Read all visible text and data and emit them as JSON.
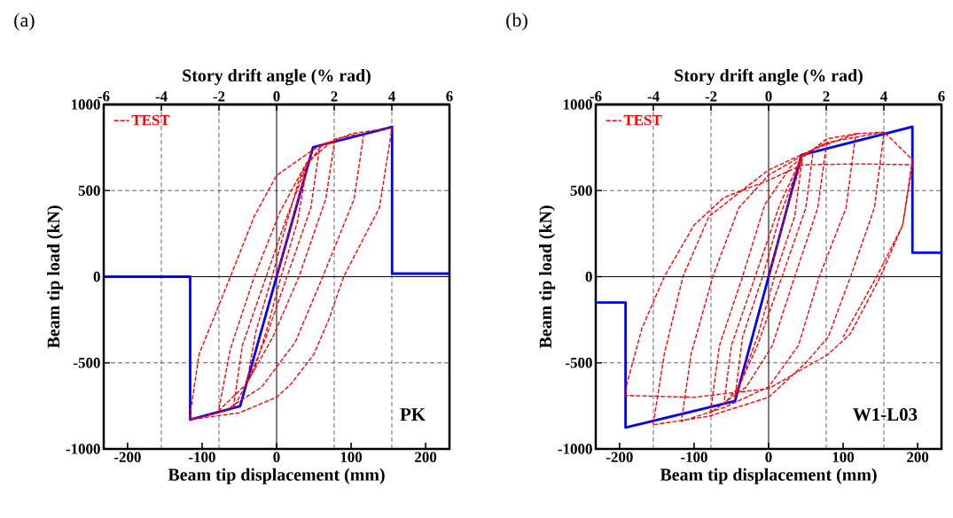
{
  "chart_data": [
    {
      "type": "line",
      "xlabel": "Beam tip displacement (mm)",
      "x2label": "Story drift angle (% rad)",
      "ylabel": "Beam tip load (kN)",
      "xlim": [
        -232,
        232
      ],
      "xticks": [
        -200,
        -100,
        0,
        100,
        200
      ],
      "x2lim": [
        -6,
        6
      ],
      "x2ticks": [
        -6,
        -4,
        -2,
        0,
        2,
        4,
        6
      ],
      "ylim": [
        -1000,
        1000
      ],
      "yticks": [
        -1000,
        -500,
        0,
        500,
        1000
      ],
      "grid": true,
      "legend": "top left",
      "annotations": [
        "(a)",
        "PK"
      ],
      "series": [
        {
          "color": "#0000ff",
          "line_style": "solid",
          "x": [
            -232,
            -116,
            -116,
            -49,
            49,
            155,
            155,
            232
          ],
          "values": [
            0,
            0,
            -830,
            -752,
            752,
            870,
            18,
            18
          ]
        },
        {
          "name": "TEST",
          "color": "#ff0000",
          "line_style": "dashed",
          "x": [
            0,
            20,
            40,
            28,
            6,
            -14,
            -30,
            -40,
            -28,
            -6,
            14,
            30,
            50,
            58,
            46,
            14,
            -14,
            -40,
            -58,
            -46,
            -14,
            14,
            40,
            62,
            78,
            66,
            30,
            -5,
            -40,
            -78,
            -62,
            -30,
            5,
            40,
            78,
            100,
            117,
            104,
            62,
            25,
            -20,
            -70,
            -117,
            -104,
            -62,
            -30,
            0,
            50,
            100,
            155,
            138,
            90,
            70,
            50,
            20,
            0,
            -50,
            -117
          ],
          "values": [
            0,
            320,
            620,
            320,
            0,
            -320,
            -540,
            -620,
            -320,
            0,
            320,
            560,
            740,
            760,
            400,
            0,
            -350,
            -620,
            -760,
            -400,
            0,
            350,
            640,
            770,
            790,
            450,
            0,
            -350,
            -620,
            -780,
            -420,
            0,
            380,
            660,
            800,
            820,
            830,
            450,
            0,
            -380,
            -640,
            -780,
            -830,
            -450,
            0,
            350,
            588,
            740,
            830,
            865,
            400,
            0,
            -250,
            -450,
            -620,
            -700,
            -790,
            -830
          ]
        }
      ]
    },
    {
      "type": "line",
      "xlabel": "Beam tip displacement (mm)",
      "x2label": "Story drift angle (% rad)",
      "ylabel": "Beam tip load (kN)",
      "xlim": [
        -232,
        232
      ],
      "xticks": [
        -200,
        -100,
        0,
        100,
        200
      ],
      "x2lim": [
        -6,
        6
      ],
      "x2ticks": [
        -6,
        -4,
        -2,
        0,
        2,
        4,
        6
      ],
      "ylim": [
        -1000,
        1000
      ],
      "yticks": [
        -1000,
        -500,
        0,
        500,
        1000
      ],
      "grid": true,
      "legend": "top left",
      "annotations": [
        "(b)",
        "W1-L03"
      ],
      "series": [
        {
          "color": "#0000ff",
          "line_style": "solid",
          "x": [
            -232,
            -192,
            -192,
            -45,
            44,
            193,
            193,
            232
          ],
          "values": [
            -150,
            -150,
            -876,
            -722,
            706,
            871,
            139,
            139
          ]
        },
        {
          "name": "TEST",
          "color": "#ff0000",
          "line_style": "dashed",
          "x": [
            0,
            25,
            45,
            35,
            8,
            -15,
            -45,
            -35,
            -8,
            15,
            45,
            60,
            50,
            18,
            -15,
            -40,
            -60,
            -50,
            -18,
            15,
            45,
            78,
            66,
            35,
            5,
            -30,
            -78,
            -66,
            -35,
            -5,
            30,
            78,
            117,
            104,
            68,
            40,
            0,
            -60,
            -117,
            -104,
            -75,
            -40,
            0,
            60,
            117,
            155,
            142,
            110,
            80,
            50,
            0,
            -80,
            -155,
            -140,
            -115,
            -80,
            -30,
            0,
            80,
            155,
            193,
            180,
            150,
            110,
            80,
            0,
            -100,
            -192,
            -190,
            -170,
            -140,
            -100,
            -60,
            0,
            45,
            120,
            193,
            180,
            145,
            100
          ],
          "values": [
            0,
            400,
            680,
            350,
            0,
            -350,
            -700,
            -350,
            0,
            350,
            700,
            740,
            400,
            0,
            -400,
            -640,
            -740,
            -400,
            0,
            420,
            700,
            780,
            400,
            0,
            -400,
            -640,
            -790,
            -400,
            0,
            420,
            640,
            800,
            830,
            400,
            0,
            -400,
            -640,
            -760,
            -840,
            -450,
            0,
            400,
            590,
            740,
            830,
            840,
            400,
            0,
            -350,
            -500,
            -700,
            -810,
            -860,
            -450,
            0,
            350,
            520,
            620,
            780,
            840,
            680,
            300,
            0,
            -330,
            -450,
            -650,
            -700,
            -690,
            -620,
            -300,
            0,
            300,
            460,
            560,
            650,
            655,
            650,
            300,
            0,
            -350
          ]
        }
      ]
    }
  ]
}
